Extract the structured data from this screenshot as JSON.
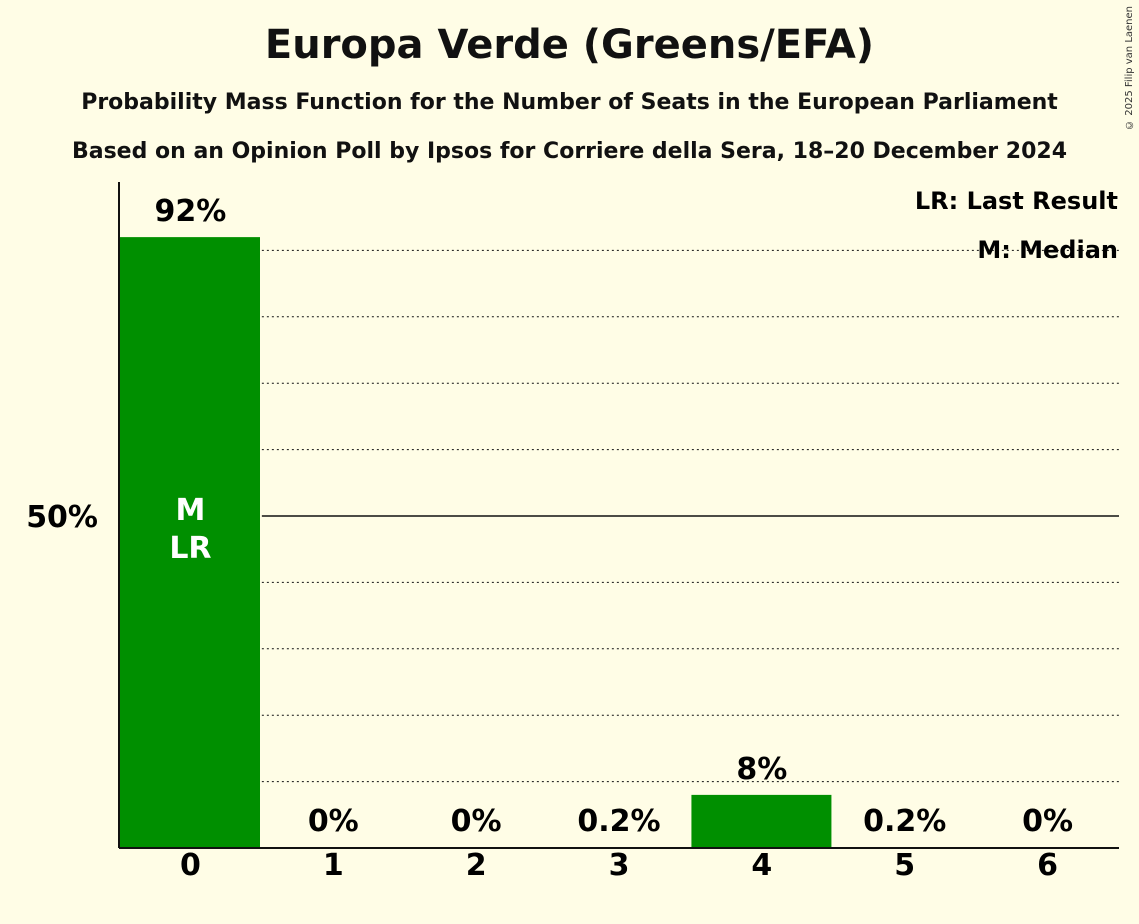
{
  "title": "Europa Verde (Greens/EFA)",
  "subtitle": "Probability Mass Function for the Number of Seats in the European Parliament",
  "subtitle2": "Based on an Opinion Poll by Ipsos for Corriere della Sera, 18–20 December 2024",
  "copyright": "© 2025 Filip van Laenen",
  "legend": {
    "last_result": "LR: Last Result",
    "median": "M: Median"
  },
  "colors": {
    "bar": "#008F00",
    "background": "#FFFDE6",
    "axis": "#111111"
  },
  "chart_data": {
    "type": "bar",
    "categories": [
      "0",
      "1",
      "2",
      "3",
      "4",
      "5",
      "6"
    ],
    "values": [
      92,
      0,
      0,
      0.2,
      8,
      0.2,
      0
    ],
    "value_labels": [
      "92%",
      "0%",
      "0%",
      "0.2%",
      "8%",
      "0.2%",
      "0%"
    ],
    "ylim": [
      0,
      100
    ],
    "ytick_label": "50%",
    "ytick_value": 50,
    "gridlines": [
      10,
      20,
      30,
      40,
      60,
      70,
      80,
      90
    ],
    "median_index": 0,
    "last_result_index": 0,
    "bar_marker_labels": [
      "M",
      "LR"
    ]
  }
}
